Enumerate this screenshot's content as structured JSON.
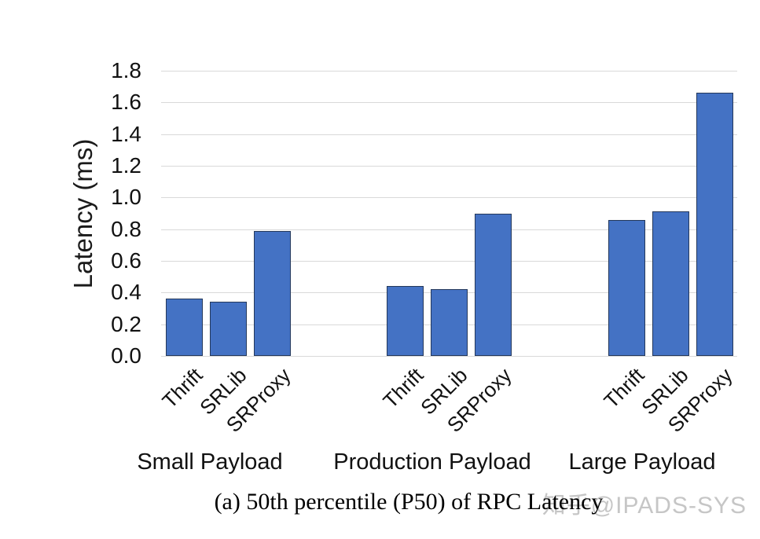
{
  "figure": {
    "caption": "(a) 50th percentile (P50) of RPC Latency",
    "watermark": "知乎@IPADS-SYS"
  },
  "chart_data": {
    "type": "bar",
    "title": "",
    "xlabel": "",
    "ylabel": "Latency  (ms)",
    "ylim": [
      0.0,
      1.8
    ],
    "yticks": [
      0.0,
      0.2,
      0.4,
      0.6,
      0.8,
      1.0,
      1.2,
      1.4,
      1.6,
      1.8
    ],
    "grid": true,
    "legend_position": "none",
    "categories": [
      "Small Payload",
      "Production Payload",
      "Large Payload"
    ],
    "series": [
      {
        "name": "Thrift",
        "values": [
          0.36,
          0.44,
          0.86
        ]
      },
      {
        "name": "SRLib",
        "values": [
          0.34,
          0.42,
          0.91
        ]
      },
      {
        "name": "SRProxy",
        "values": [
          0.79,
          0.9,
          1.66
        ]
      }
    ],
    "bar_color": "#4472C4",
    "bar_border_color": "#24385B",
    "gridline_color": "#D9D9D9"
  }
}
